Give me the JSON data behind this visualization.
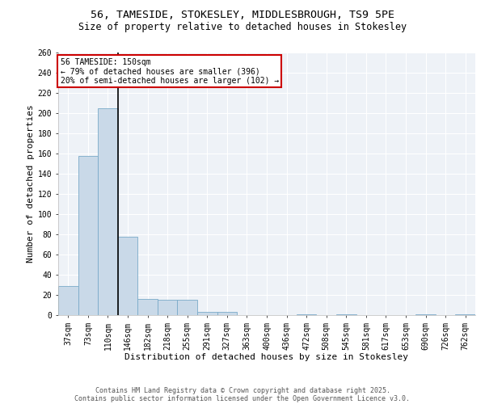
{
  "title_line1": "56, TAMESIDE, STOKESLEY, MIDDLESBROUGH, TS9 5PE",
  "title_line2": "Size of property relative to detached houses in Stokesley",
  "xlabel": "Distribution of detached houses by size in Stokesley",
  "ylabel": "Number of detached properties",
  "categories": [
    "37sqm",
    "73sqm",
    "110sqm",
    "146sqm",
    "182sqm",
    "218sqm",
    "255sqm",
    "291sqm",
    "327sqm",
    "363sqm",
    "400sqm",
    "436sqm",
    "472sqm",
    "508sqm",
    "545sqm",
    "581sqm",
    "617sqm",
    "653sqm",
    "690sqm",
    "726sqm",
    "762sqm"
  ],
  "values": [
    29,
    158,
    205,
    78,
    16,
    15,
    15,
    3,
    3,
    0,
    0,
    0,
    1,
    0,
    1,
    0,
    0,
    0,
    1,
    0,
    1
  ],
  "bar_color": "#c9d9e8",
  "bar_edge_color": "#7aaac8",
  "highlight_index": 2,
  "highlight_line_color": "#000000",
  "annotation_text": "56 TAMESIDE: 150sqm\n← 79% of detached houses are smaller (396)\n20% of semi-detached houses are larger (102) →",
  "annotation_box_color": "#ffffff",
  "annotation_box_edge_color": "#cc0000",
  "ylim": [
    0,
    260
  ],
  "yticks": [
    0,
    20,
    40,
    60,
    80,
    100,
    120,
    140,
    160,
    180,
    200,
    220,
    240,
    260
  ],
  "background_color": "#eef2f7",
  "grid_color": "#ffffff",
  "footer_line1": "Contains HM Land Registry data © Crown copyright and database right 2025.",
  "footer_line2": "Contains public sector information licensed under the Open Government Licence v3.0.",
  "title_fontsize": 9.5,
  "subtitle_fontsize": 8.5,
  "label_fontsize": 8,
  "tick_fontsize": 7,
  "annotation_fontsize": 7,
  "footer_fontsize": 6
}
